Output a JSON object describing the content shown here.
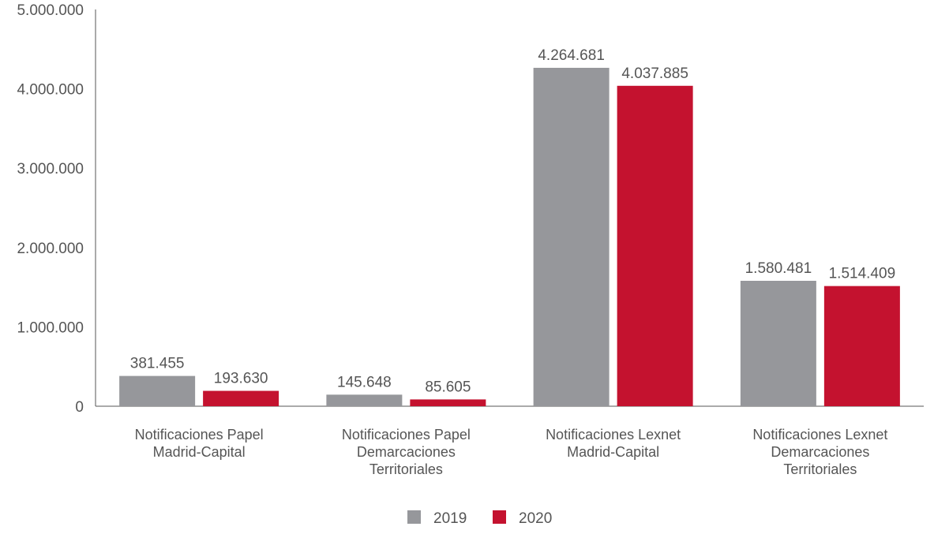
{
  "chart_data": {
    "type": "bar",
    "title": "",
    "xlabel": "",
    "ylabel": "",
    "ylim": [
      0,
      5000000
    ],
    "yticks": [
      0,
      1000000,
      2000000,
      3000000,
      4000000,
      5000000
    ],
    "ytick_labels": [
      "0",
      "1.000.000",
      "2.000.000",
      "3.000.000",
      "4.000.000",
      "5.000.000"
    ],
    "grid": false,
    "legend_position": "bottom-center",
    "categories": [
      [
        "Notificaciones Papel",
        "Madrid-Capital"
      ],
      [
        "Notificaciones Papel",
        "Demarcaciones",
        "Territoriales"
      ],
      [
        "Notificaciones Lexnet",
        "Madrid-Capital"
      ],
      [
        "Notificaciones Lexnet",
        "Demarcaciones",
        "Territoriales"
      ]
    ],
    "series": [
      {
        "name": "2019",
        "color": "#96979b",
        "values": [
          381455,
          145648,
          4264681,
          1580481
        ],
        "labels": [
          "381.455",
          "145.648",
          "4.264.681",
          "1.580.481"
        ]
      },
      {
        "name": "2020",
        "color": "#c4122f",
        "values": [
          193630,
          85605,
          4037885,
          1514409
        ],
        "labels": [
          "193.630",
          "85.605",
          "4.037.885",
          "1.514.409"
        ]
      }
    ]
  }
}
